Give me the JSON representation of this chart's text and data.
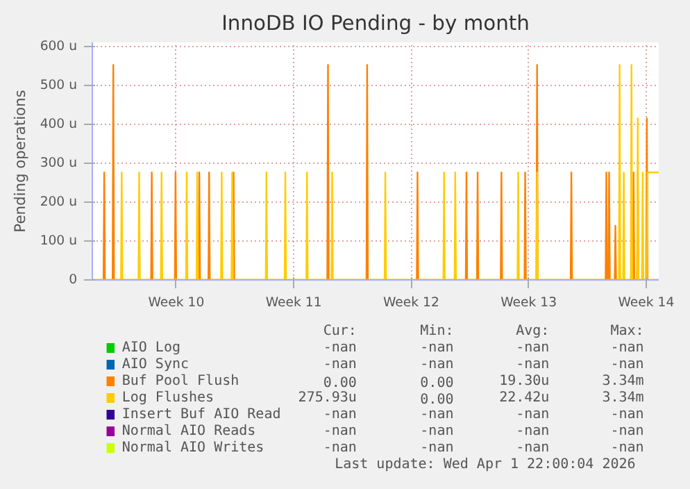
{
  "chart_data": {
    "type": "line",
    "title": "InnoDB IO Pending - by month",
    "ylabel": "Pending operations",
    "xlim": [
      "2026-02-25T00:00",
      "2026-03-30T18:00"
    ],
    "ylim": [
      0,
      610
    ],
    "xticks": [
      {
        "value": "2026-03-02",
        "label": "Week 10"
      },
      {
        "value": "2026-03-09",
        "label": "Week 11"
      },
      {
        "value": "2026-03-16",
        "label": "Week 12"
      },
      {
        "value": "2026-03-23",
        "label": "Week 13"
      },
      {
        "value": "2026-03-30",
        "label": "Week 14"
      }
    ],
    "yticks": [
      0,
      {
        "value": 100,
        "label": "100 u"
      },
      {
        "value": 200,
        "label": "200 u"
      },
      {
        "value": 300,
        "label": "300 u"
      },
      {
        "value": 400,
        "label": "400 u"
      },
      {
        "value": 500,
        "label": "500 u"
      },
      {
        "value": 600,
        "label": "600 u"
      }
    ],
    "grid": true,
    "legend": "bottom",
    "series": [
      {
        "name": "AIO Log",
        "color": "#00cc00"
      },
      {
        "name": "AIO Sync",
        "color": "#0066b3"
      },
      {
        "name": "Buf Pool Flush",
        "color": "#ff8000",
        "x": [
          "2026-02-25T00:00",
          "2026-02-25T16:00",
          "2026-02-25T17:00",
          "2026-02-25T18:00",
          "2026-02-26T05:00",
          "2026-02-26T06:00",
          "2026-02-26T07:00",
          "2026-02-28T12:00",
          "2026-02-28T13:00",
          "2026-02-28T14:00",
          "2026-03-01T22:00",
          "2026-03-01T23:00",
          "2026-03-02T00:00",
          "2026-03-03T08:00",
          "2026-03-03T09:00",
          "2026-03-03T10:00",
          "2026-03-03T22:00",
          "2026-03-03T23:00",
          "2026-03-04T00:00",
          "2026-03-05T09:00",
          "2026-03-05T10:00",
          "2026-03-05T11:00",
          "2026-03-11T00:00",
          "2026-03-11T01:00",
          "2026-03-11T02:00",
          "2026-03-13T08:00",
          "2026-03-13T09:00",
          "2026-03-13T10:00",
          "2026-03-16T08:00",
          "2026-03-16T09:00",
          "2026-03-16T10:00",
          "2026-03-19T06:00",
          "2026-03-19T07:00",
          "2026-03-19T08:00",
          "2026-03-19T22:00",
          "2026-03-19T23:00",
          "2026-03-20T00:00",
          "2026-03-21T08:00",
          "2026-03-21T09:00",
          "2026-03-21T10:00",
          "2026-03-22T18:00",
          "2026-03-22T19:00",
          "2026-03-22T20:00",
          "2026-03-23T11:00",
          "2026-03-23T12:00",
          "2026-03-23T13:00",
          "2026-03-25T12:00",
          "2026-03-25T13:00",
          "2026-03-25T14:00",
          "2026-03-27T14:00",
          "2026-03-27T15:00",
          "2026-03-27T16:00",
          "2026-03-27T18:00",
          "2026-03-27T19:00",
          "2026-03-27T20:00",
          "2026-03-28T03:00",
          "2026-03-28T04:00",
          "2026-03-28T05:00",
          "2026-03-29T05:00",
          "2026-03-29T06:00",
          "2026-03-29T07:00",
          "2026-03-29T11:00",
          "2026-03-29T12:00",
          "2026-03-29T13:00",
          "2026-03-30T00:00",
          "2026-03-30T01:00",
          "2026-03-30T02:00",
          "2026-03-30T18:00"
        ],
        "values": [
          0,
          0,
          276,
          0,
          0,
          552,
          0,
          0,
          276,
          0,
          0,
          276,
          0,
          0,
          276,
          0,
          0,
          276,
          0,
          0,
          276,
          0,
          0,
          552,
          0,
          0,
          552,
          0,
          0,
          276,
          0,
          0,
          276,
          0,
          0,
          276,
          0,
          0,
          276,
          0,
          0,
          276,
          0,
          0,
          552,
          0,
          0,
          276,
          0,
          0,
          276,
          0,
          0,
          276,
          0,
          0,
          139,
          0,
          0,
          276,
          0,
          0,
          276,
          0,
          0,
          415,
          0,
          0
        ]
      },
      {
        "name": "Log Flushes",
        "color": "#ffcc00",
        "x": [
          "2026-02-25T00:00",
          "2026-02-26T17:00",
          "2026-02-26T18:00",
          "2026-02-26T19:00",
          "2026-02-27T18:00",
          "2026-02-27T19:00",
          "2026-02-27T20:00",
          "2026-03-01T02:00",
          "2026-03-01T03:00",
          "2026-03-01T04:00",
          "2026-03-02T14:00",
          "2026-03-02T15:00",
          "2026-03-02T16:00",
          "2026-03-03T05:00",
          "2026-03-03T06:00",
          "2026-03-03T07:00",
          "2026-03-04T16:00",
          "2026-03-04T17:00",
          "2026-03-04T18:00",
          "2026-03-05T07:00",
          "2026-03-05T08:00",
          "2026-03-05T09:00",
          "2026-03-07T08:00",
          "2026-03-07T09:00",
          "2026-03-07T10:00",
          "2026-03-08T11:00",
          "2026-03-08T12:00",
          "2026-03-08T13:00",
          "2026-03-09T18:00",
          "2026-03-09T19:00",
          "2026-03-09T20:00",
          "2026-03-11T06:00",
          "2026-03-11T07:00",
          "2026-03-11T08:00",
          "2026-03-14T10:00",
          "2026-03-14T11:00",
          "2026-03-14T12:00",
          "2026-03-17T22:00",
          "2026-03-17T23:00",
          "2026-03-18T00:00",
          "2026-03-18T14:00",
          "2026-03-18T15:00",
          "2026-03-18T16:00",
          "2026-03-22T08:00",
          "2026-03-22T09:00",
          "2026-03-22T10:00",
          "2026-03-23T11:00",
          "2026-03-23T12:00",
          "2026-03-23T13:00",
          "2026-03-28T09:00",
          "2026-03-28T10:00",
          "2026-03-28T11:00",
          "2026-03-28T15:00",
          "2026-03-28T16:00",
          "2026-03-28T17:00",
          "2026-03-29T02:00",
          "2026-03-29T03:00",
          "2026-03-29T04:00",
          "2026-03-29T11:00",
          "2026-03-29T12:00",
          "2026-03-29T13:00",
          "2026-03-29T18:00",
          "2026-03-29T19:00",
          "2026-03-29T20:00",
          "2026-03-30T01:00",
          "2026-03-30T02:00",
          "2026-03-30T18:00"
        ],
        "values": [
          0,
          0,
          276,
          0,
          0,
          276,
          0,
          0,
          276,
          0,
          0,
          276,
          0,
          0,
          276,
          0,
          0,
          276,
          0,
          0,
          276,
          0,
          0,
          276,
          0,
          0,
          276,
          0,
          0,
          276,
          0,
          0,
          276,
          0,
          0,
          276,
          0,
          0,
          276,
          0,
          0,
          276,
          0,
          0,
          276,
          0,
          0,
          276,
          0,
          0,
          552,
          0,
          0,
          276,
          0,
          0,
          552,
          0,
          0,
          415,
          0,
          0,
          276,
          0,
          0,
          276,
          276
        ]
      },
      {
        "name": "Insert Buf AIO Read",
        "color": "#330099"
      },
      {
        "name": "Normal AIO Reads",
        "color": "#990099"
      },
      {
        "name": "Normal AIO Writes",
        "color": "#ccff00"
      }
    ],
    "annotations": [
      "Cur:",
      "Min:",
      "Avg:",
      "Max:",
      "-nan",
      "-nan",
      "-nan",
      "-nan",
      "-nan",
      "-nan",
      "-nan",
      "-nan",
      "0.00",
      "0.00",
      "19.30u",
      "3.34m",
      "275.93u",
      "0.00",
      "22.42u",
      "3.34m",
      "-nan",
      "-nan",
      "-nan",
      "-nan",
      "-nan",
      "-nan",
      "-nan",
      "-nan",
      "-nan",
      "-nan",
      "-nan",
      "-nan",
      "Last update: Wed Apr  1 22:00:04 2026"
    ]
  }
}
